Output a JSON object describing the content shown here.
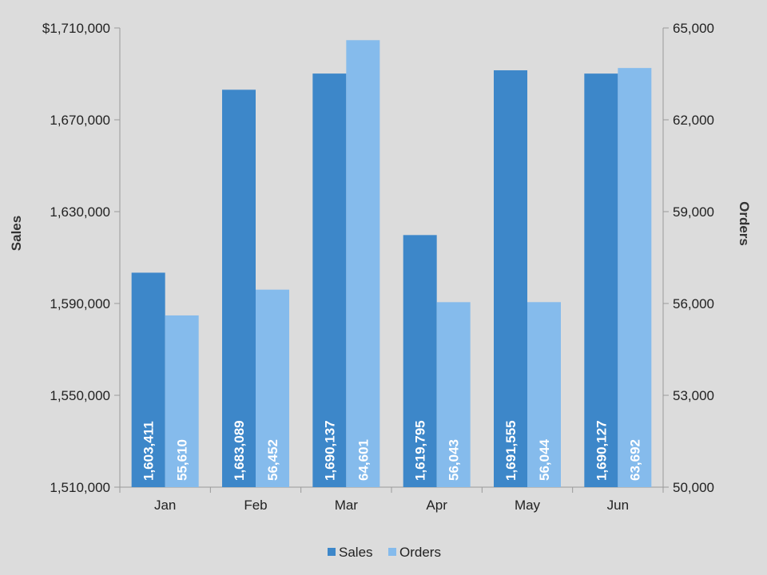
{
  "chart_data": {
    "type": "bar",
    "categories": [
      "Jan",
      "Feb",
      "Mar",
      "Apr",
      "May",
      "Jun"
    ],
    "series": [
      {
        "name": "Sales",
        "axis": "left",
        "color": "#3d87c9",
        "values": [
          1603411,
          1683089,
          1690137,
          1619795,
          1691555,
          1690127
        ],
        "labels": [
          "1,603,411",
          "1,683,089",
          "1,690,137",
          "1,619,795",
          "1,691,555",
          "1,690,127"
        ]
      },
      {
        "name": "Orders",
        "axis": "right",
        "color": "#85bbec",
        "values": [
          55610,
          56452,
          64601,
          56043,
          56044,
          63692
        ],
        "labels": [
          "55,610",
          "56,452",
          "64,601",
          "56,043",
          "56,044",
          "63,692"
        ]
      }
    ],
    "left_axis": {
      "title": "Sales",
      "min": 1510000,
      "max": 1710000,
      "ticks": [
        1510000,
        1550000,
        1590000,
        1630000,
        1670000,
        1710000
      ],
      "tick_labels": [
        "1,510,000",
        "1,550,000",
        "1,590,000",
        "1,630,000",
        "1,670,000",
        "$1,710,000"
      ]
    },
    "right_axis": {
      "title": "Orders",
      "min": 50000,
      "max": 65000,
      "ticks": [
        50000,
        53000,
        56000,
        59000,
        62000,
        65000
      ],
      "tick_labels": [
        "50,000",
        "53,000",
        "56,000",
        "59,000",
        "62,000",
        "65,000"
      ]
    },
    "grid": false,
    "legend_position": "bottom"
  },
  "colors": {
    "background": "#dcdcdc",
    "axis_line": "#9a9a9a"
  }
}
